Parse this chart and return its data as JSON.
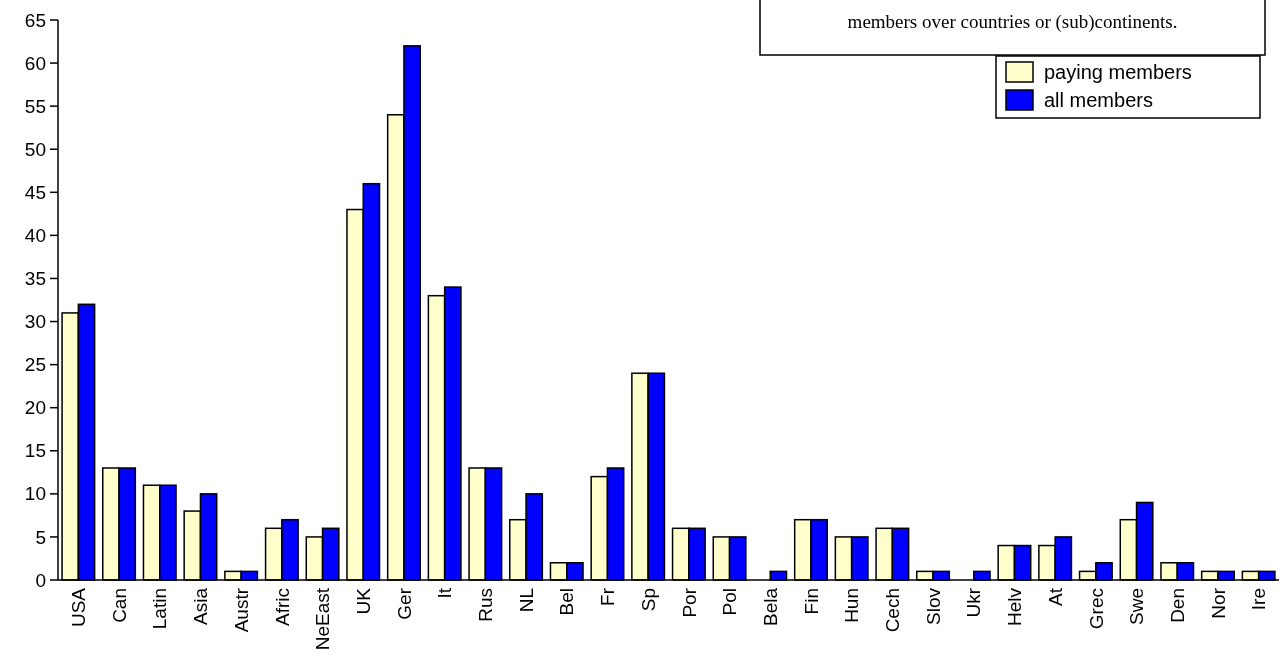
{
  "chart_data": {
    "type": "bar",
    "annotations": [
      "members over countries or (sub)continents."
    ],
    "categories": [
      "USA",
      "Can",
      "Latin",
      "Asia",
      "Austr",
      "Afric",
      "NeEast",
      "UK",
      "Ger",
      "It",
      "Rus",
      "NL",
      "Bel",
      "Fr",
      "Sp",
      "Por",
      "Pol",
      "Bela",
      "Fin",
      "Hun",
      "Cech",
      "Slov",
      "Ukr",
      "Helv",
      "At",
      "Grec",
      "Swe",
      "Den",
      "Nor",
      "Ire"
    ],
    "series": [
      {
        "name": "paying members",
        "color": "#ffffcc",
        "values": [
          31,
          13,
          11,
          8,
          1,
          6,
          5,
          43,
          54,
          33,
          13,
          7,
          2,
          12,
          24,
          6,
          5,
          0,
          7,
          5,
          6,
          1,
          0,
          4,
          4,
          1,
          7,
          2,
          1,
          1
        ]
      },
      {
        "name": "all members",
        "color": "#0000ff",
        "values": [
          32,
          13,
          11,
          10,
          1,
          7,
          6,
          46,
          62,
          34,
          13,
          10,
          2,
          13,
          24,
          6,
          5,
          1,
          7,
          5,
          6,
          1,
          1,
          4,
          5,
          2,
          9,
          2,
          1,
          1
        ]
      }
    ],
    "ylim": [
      0,
      65
    ],
    "yticks": [
      0,
      5,
      10,
      15,
      20,
      25,
      30,
      35,
      40,
      45,
      50,
      55,
      60,
      65
    ],
    "grid": false,
    "legend": "top right"
  }
}
